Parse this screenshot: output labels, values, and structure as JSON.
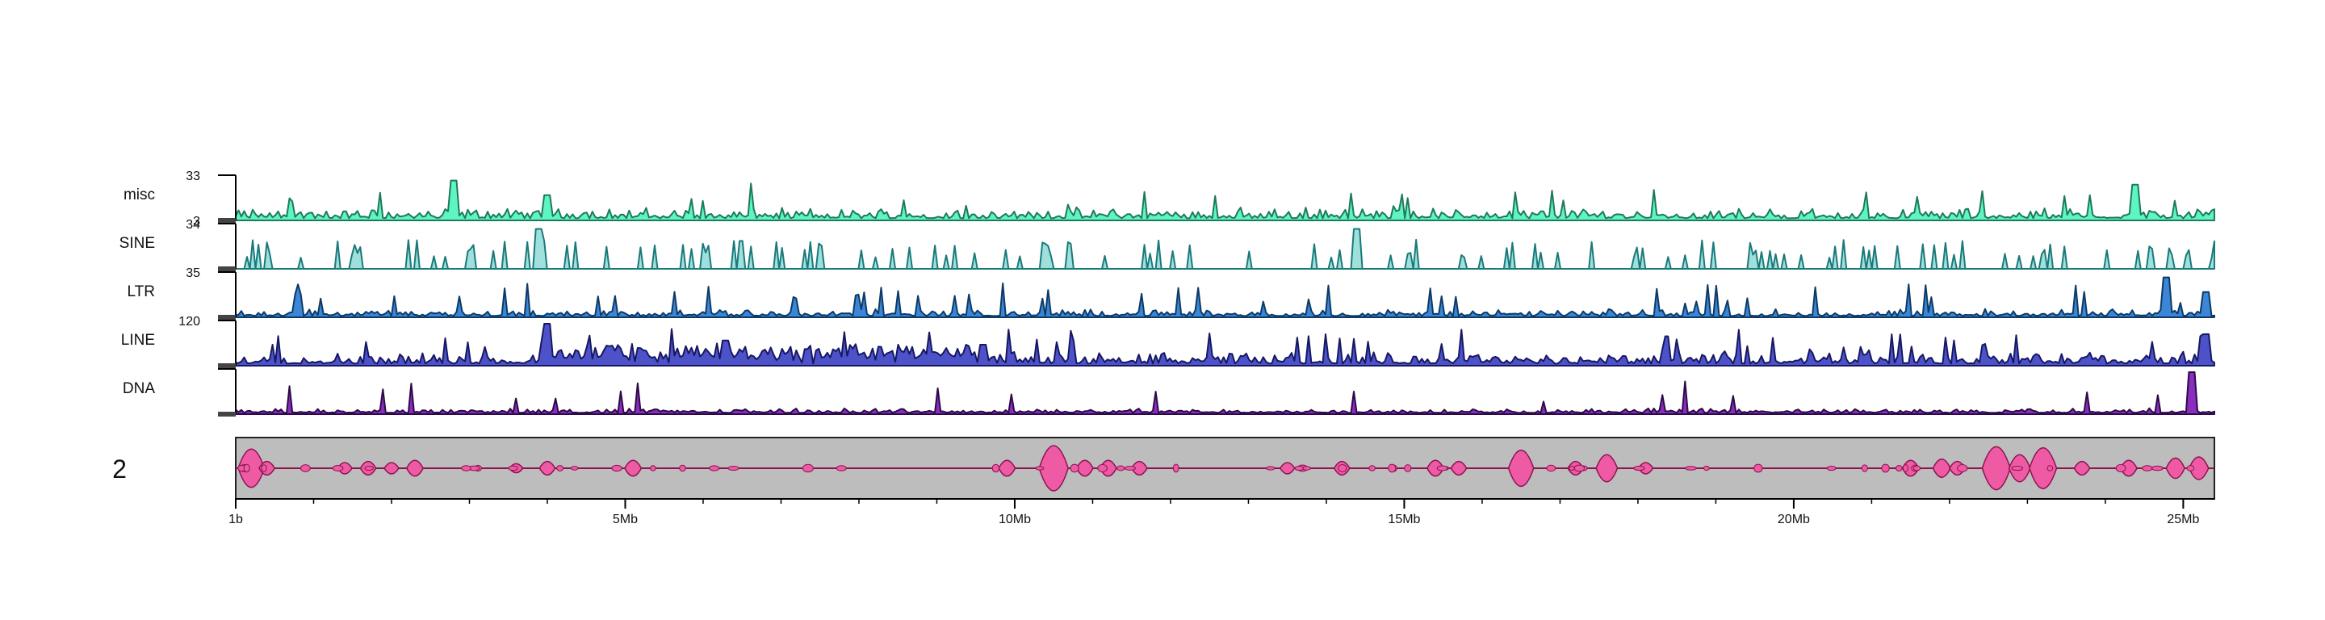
{
  "chart_data": {
    "type": "area",
    "chromosome_label": "2",
    "x_axis": {
      "range_bp": [
        1,
        25400000
      ],
      "major_ticks": [
        {
          "value": 1,
          "label": "1b"
        },
        {
          "value": 5000000,
          "label": "5Mb"
        },
        {
          "value": 10000000,
          "label": "10Mb"
        },
        {
          "value": 15000000,
          "label": "15Mb"
        },
        {
          "value": 20000000,
          "label": "20Mb"
        },
        {
          "value": 25000000,
          "label": "25Mb"
        }
      ],
      "minor_tick_step_bp": 1000000
    },
    "tracks": [
      {
        "name": "misc",
        "max_label": "33",
        "min_label": "3",
        "ymin": 3,
        "ymax": 33,
        "fill": "#5ef5c0",
        "stroke": "#1d7a5a",
        "baseline_level": 0.05,
        "noise_level": 0.28,
        "spike_rate": 0.04,
        "spikes": [
          [
            2800000,
            0.95
          ],
          [
            4000000,
            0.6
          ],
          [
            24400000,
            0.85
          ]
        ]
      },
      {
        "name": "SINE",
        "max_label": "34",
        "min_label": "",
        "ymin": 0,
        "ymax": 34,
        "fill": "#9fe0dd",
        "stroke": "#1a7a7a",
        "baseline_level": 0.0,
        "noise_level": 0.0,
        "spike_rate": 0.16,
        "spikes": [
          [
            3900000,
            0.95
          ],
          [
            14400000,
            0.95
          ]
        ]
      },
      {
        "name": "LTR",
        "max_label": "35",
        "min_label": "",
        "ymin": 0,
        "ymax": 35,
        "fill": "#3b86d6",
        "stroke": "#0d3a66",
        "baseline_level": 0.03,
        "noise_level": 0.18,
        "spike_rate": 0.05,
        "spikes": [
          [
            800000,
            0.55
          ],
          [
            24800000,
            0.95
          ],
          [
            25300000,
            0.6
          ]
        ]
      },
      {
        "name": "LINE",
        "max_label": "120",
        "min_label": "",
        "ymin": 0,
        "ymax": 120,
        "fill": "#4d52c8",
        "stroke": "#161863",
        "baseline_level": 0.05,
        "noise_level": 0.3,
        "spike_rate": 0.05,
        "spikes": [
          [
            4000000,
            1.0
          ],
          [
            6300000,
            0.6
          ],
          [
            9600000,
            0.5
          ],
          [
            25300000,
            0.75
          ]
        ],
        "enriched_regions": [
          [
            3900000,
            9500000,
            0.35
          ]
        ]
      },
      {
        "name": "DNA",
        "max_label": "",
        "min_label": "",
        "ymin": 0,
        "ymax": 120,
        "fill": "#8a2dbd",
        "stroke": "#2c0a4a",
        "baseline_level": 0.03,
        "noise_level": 0.12,
        "spike_rate": 0.02,
        "spikes": [
          [
            25100000,
            1.0
          ]
        ]
      }
    ],
    "ideogram": {
      "background": "#bdbdbd",
      "line_color": "#8c1350",
      "fill": "#ef5aa5",
      "features": [
        [
          200000,
          0.85
        ],
        [
          400000,
          0.3
        ],
        [
          1400000,
          0.25
        ],
        [
          1700000,
          0.3
        ],
        [
          2000000,
          0.25
        ],
        [
          2300000,
          0.35
        ],
        [
          3600000,
          0.2
        ],
        [
          4000000,
          0.3
        ],
        [
          5100000,
          0.35
        ],
        [
          9900000,
          0.35
        ],
        [
          10500000,
          1.0
        ],
        [
          10900000,
          0.35
        ],
        [
          11200000,
          0.35
        ],
        [
          11600000,
          0.3
        ],
        [
          13500000,
          0.25
        ],
        [
          14200000,
          0.3
        ],
        [
          15400000,
          0.35
        ],
        [
          15700000,
          0.3
        ],
        [
          16500000,
          0.8
        ],
        [
          17200000,
          0.3
        ],
        [
          17600000,
          0.6
        ],
        [
          18100000,
          0.25
        ],
        [
          21500000,
          0.35
        ],
        [
          21900000,
          0.4
        ],
        [
          22100000,
          0.3
        ],
        [
          22600000,
          0.95
        ],
        [
          22900000,
          0.6
        ],
        [
          23200000,
          0.9
        ],
        [
          23700000,
          0.3
        ],
        [
          24300000,
          0.35
        ],
        [
          24900000,
          0.45
        ],
        [
          25200000,
          0.5
        ]
      ]
    }
  }
}
